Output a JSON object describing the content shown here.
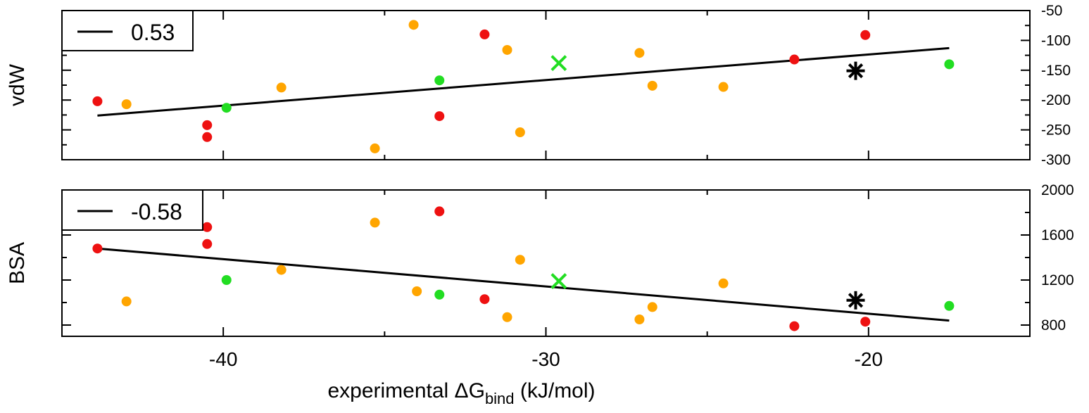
{
  "chart_data": [
    {
      "type": "scatter",
      "panel": "top",
      "ylabel": "vdW",
      "ylim": [
        -300,
        -50
      ],
      "yticks": [
        -50,
        -100,
        -150,
        -200,
        -250,
        -300
      ],
      "y_axis_side": "right",
      "xlim": [
        -45,
        -15
      ],
      "legend": {
        "placement": "top-left",
        "line_label": "0.53"
      },
      "fit_line": {
        "x": [
          -43.9,
          -17.5
        ],
        "y": [
          -226,
          -113
        ]
      },
      "colors": {
        "red": "#ee1111",
        "orange": "#ffa500",
        "green": "#22dd22",
        "fit": "#000000",
        "star": "#000000"
      },
      "series": [
        {
          "color": "red",
          "points": [
            [
              -43.9,
              -202
            ],
            [
              -40.5,
              -242
            ],
            [
              -40.5,
              -262
            ],
            [
              -33.3,
              -227
            ],
            [
              -31.9,
              -90
            ],
            [
              -22.3,
              -132
            ],
            [
              -20.1,
              -91
            ]
          ]
        },
        {
          "color": "orange",
          "points": [
            [
              -43.0,
              -207
            ],
            [
              -38.2,
              -179
            ],
            [
              -35.3,
              -281
            ],
            [
              -34.1,
              -74
            ],
            [
              -31.2,
              -116
            ],
            [
              -30.8,
              -254
            ],
            [
              -27.1,
              -121
            ],
            [
              -26.7,
              -176
            ],
            [
              -24.5,
              -178
            ]
          ]
        },
        {
          "color": "green",
          "points": [
            [
              -39.9,
              -213
            ],
            [
              -33.3,
              -167
            ],
            [
              -17.5,
              -140
            ]
          ]
        }
      ],
      "cross_marker": {
        "x": -29.6,
        "y": -138,
        "color": "green"
      },
      "star_marker": {
        "x": -20.4,
        "y": -151,
        "color": "star"
      }
    },
    {
      "type": "scatter",
      "panel": "bottom",
      "ylabel": "BSA",
      "ylim": [
        700,
        2000
      ],
      "yticks": [
        800,
        1200,
        1600,
        2000
      ],
      "y_axis_side": "right",
      "xlim": [
        -45,
        -15
      ],
      "xlabel_main": "experimental ΔG",
      "xlabel_sub": "bind",
      "xlabel_tail": " (kJ/mol)",
      "xticks": [
        -40,
        -30,
        -20
      ],
      "legend": {
        "placement": "top-left",
        "line_label": "-0.58"
      },
      "fit_line": {
        "x": [
          -43.9,
          -17.5
        ],
        "y": [
          1480,
          840
        ]
      },
      "colors": {
        "red": "#ee1111",
        "orange": "#ffa500",
        "green": "#22dd22",
        "fit": "#000000",
        "star": "#000000"
      },
      "series": [
        {
          "color": "red",
          "points": [
            [
              -43.9,
              1480
            ],
            [
              -40.5,
              1670
            ],
            [
              -40.5,
              1520
            ],
            [
              -33.3,
              1810
            ],
            [
              -31.9,
              1030
            ],
            [
              -22.3,
              790
            ],
            [
              -20.1,
              830
            ]
          ]
        },
        {
          "color": "orange",
          "points": [
            [
              -43.0,
              1010
            ],
            [
              -38.2,
              1290
            ],
            [
              -35.3,
              1710
            ],
            [
              -34.0,
              1100
            ],
            [
              -31.2,
              870
            ],
            [
              -30.8,
              1380
            ],
            [
              -27.1,
              850
            ],
            [
              -26.7,
              960
            ],
            [
              -24.5,
              1170
            ]
          ]
        },
        {
          "color": "green",
          "points": [
            [
              -39.9,
              1200
            ],
            [
              -33.3,
              1070
            ],
            [
              -17.5,
              970
            ]
          ]
        }
      ],
      "cross_marker": {
        "x": -29.6,
        "y": 1190,
        "color": "green"
      },
      "star_marker": {
        "x": -20.4,
        "y": 1020,
        "color": "star"
      }
    }
  ]
}
